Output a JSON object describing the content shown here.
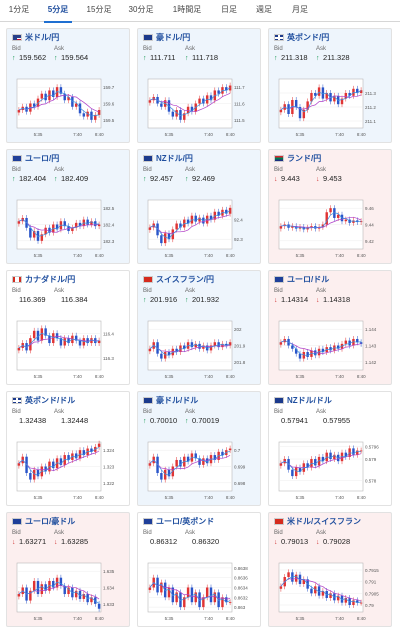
{
  "tabs": [
    {
      "label": "1分足",
      "active": false
    },
    {
      "label": "5分足",
      "active": true
    },
    {
      "label": "15分足",
      "active": false
    },
    {
      "label": "30分足",
      "active": false
    },
    {
      "label": "1時間足",
      "active": false
    },
    {
      "label": "日足",
      "active": false
    },
    {
      "label": "週足",
      "active": false
    },
    {
      "label": "月足",
      "active": false
    }
  ],
  "bid_label": "Bid",
  "ask_label": "Ask",
  "colors": {
    "up": "#1a9a55",
    "down": "#d23c3c",
    "candle_up": "#e03434",
    "candle_down": "#2a55c9",
    "ma_purple": "#b040c8",
    "ma_blue": "#3a8ee0"
  },
  "cards": [
    {
      "name": "米ドル/円",
      "flag": "us-flag",
      "trend": "up",
      "bid": "159.562",
      "ask": "159.564",
      "chart_data": {
        "type": "candlestick",
        "x_ticks": [
          "5:35",
          "7:40",
          "8:40"
        ],
        "y_ticks": [
          "159.7",
          "159.6",
          "159.5"
        ],
        "ylim": [
          159.45,
          159.75
        ],
        "close": [
          159.56,
          159.58,
          159.55,
          159.6,
          159.58,
          159.63,
          159.66,
          159.62,
          159.68,
          159.64,
          159.7,
          159.66,
          159.62,
          159.64,
          159.58,
          159.6,
          159.54,
          159.52,
          159.55,
          159.5,
          159.53,
          159.56
        ]
      }
    },
    {
      "name": "豪ドル/円",
      "flag": "au-flag",
      "trend": "up",
      "bid": "111.711",
      "ask": "111.718",
      "chart_data": {
        "type": "candlestick",
        "x_ticks": [
          "5:35",
          "7:40",
          "8:40"
        ],
        "y_ticks": [
          "111.7",
          "111.6",
          "111.5"
        ],
        "ylim": [
          111.45,
          111.75
        ],
        "close": [
          111.62,
          111.64,
          111.6,
          111.58,
          111.62,
          111.55,
          111.52,
          111.56,
          111.5,
          111.54,
          111.58,
          111.55,
          111.6,
          111.63,
          111.6,
          111.65,
          111.62,
          111.68,
          111.66,
          111.7,
          111.68,
          111.71
        ]
      }
    },
    {
      "name": "英ポンド/円",
      "flag": "gb-flag",
      "trend": "up",
      "bid": "211.318",
      "ask": "211.328",
      "chart_data": {
        "type": "candlestick",
        "x_ticks": [
          "5:35",
          "7:40",
          "8:40"
        ],
        "y_ticks": [
          "211.3",
          "211.2",
          "211.1"
        ],
        "ylim": [
          211.05,
          211.4
        ],
        "close": [
          211.18,
          211.22,
          211.15,
          211.25,
          211.2,
          211.12,
          211.18,
          211.24,
          211.3,
          211.28,
          211.34,
          211.26,
          211.3,
          211.24,
          211.28,
          211.22,
          211.26,
          211.3,
          211.28,
          211.33,
          211.3,
          211.32
        ]
      }
    },
    {
      "name": "ユーロ/円",
      "flag": "eu-flag",
      "trend": "up",
      "bid": "182.404",
      "ask": "182.409",
      "chart_data": {
        "type": "candlestick",
        "x_ticks": [
          "5:35",
          "7:40",
          "8:40"
        ],
        "y_ticks": [
          "182.5",
          "182.4",
          "182.3"
        ],
        "ylim": [
          182.25,
          182.55
        ],
        "close": [
          182.42,
          182.44,
          182.38,
          182.32,
          182.36,
          182.3,
          182.34,
          182.38,
          182.35,
          182.4,
          182.37,
          182.42,
          182.39,
          182.36,
          182.38,
          182.41,
          182.39,
          182.43,
          182.4,
          182.42,
          182.39,
          182.4
        ]
      }
    },
    {
      "name": "NZドル/円",
      "flag": "nz-flag",
      "trend": "up",
      "bid": "92.457",
      "ask": "92.469",
      "chart_data": {
        "type": "candlestick",
        "x_ticks": [
          "5:35",
          "7:40",
          "8:40"
        ],
        "y_ticks": [
          "92.4",
          "92.3"
        ],
        "ylim": [
          92.25,
          92.5
        ],
        "close": [
          92.36,
          92.38,
          92.32,
          92.28,
          92.33,
          92.3,
          92.35,
          92.38,
          92.36,
          92.4,
          92.38,
          92.42,
          92.39,
          92.41,
          92.38,
          92.42,
          92.4,
          92.44,
          92.42,
          92.45,
          92.43,
          92.46
        ]
      }
    },
    {
      "name": "ランド/円",
      "flag": "za-flag",
      "trend": "down",
      "bid": "9.443",
      "ask": "9.453",
      "chart_data": {
        "type": "candlestick",
        "x_ticks": [
          "5:35",
          "7:40",
          "8:40"
        ],
        "y_ticks": [
          "9.46",
          "9.44",
          "9.42"
        ],
        "ylim": [
          9.41,
          9.47
        ],
        "close": [
          9.438,
          9.44,
          9.436,
          9.438,
          9.435,
          9.437,
          9.434,
          9.436,
          9.438,
          9.435,
          9.437,
          9.44,
          9.455,
          9.46,
          9.448,
          9.452,
          9.444,
          9.446,
          9.442,
          9.445,
          9.443,
          9.444
        ]
      }
    },
    {
      "name": "カナダドル/円",
      "flag": "ca-flag",
      "trend": "flat",
      "bid": "116.369",
      "ask": "116.384",
      "chart_data": {
        "type": "candlestick",
        "x_ticks": [
          "5:35",
          "7:40",
          "8:40"
        ],
        "y_ticks": [
          "116.4",
          "116.3"
        ],
        "ylim": [
          116.25,
          116.45
        ],
        "close": [
          116.34,
          116.36,
          116.33,
          116.38,
          116.41,
          116.37,
          116.42,
          116.39,
          116.36,
          116.4,
          116.38,
          116.35,
          116.38,
          116.36,
          116.39,
          116.37,
          116.35,
          116.38,
          116.36,
          116.38,
          116.36,
          116.37
        ]
      }
    },
    {
      "name": "スイスフラン/円",
      "flag": "ch-flag",
      "trend": "up",
      "bid": "201.916",
      "ask": "201.932",
      "chart_data": {
        "type": "candlestick",
        "x_ticks": [
          "5:35",
          "7:40",
          "8:40"
        ],
        "y_ticks": [
          "202",
          "201.9",
          "201.8"
        ],
        "ylim": [
          201.75,
          202.05
        ],
        "close": [
          201.88,
          201.92,
          201.85,
          201.82,
          201.86,
          201.84,
          201.88,
          201.86,
          201.9,
          201.88,
          201.92,
          201.89,
          201.91,
          201.88,
          201.9,
          201.87,
          201.9,
          201.92,
          201.89,
          201.91,
          201.9,
          201.92
        ]
      }
    },
    {
      "name": "ユーロ/ドル",
      "flag": "eu-flag",
      "trend": "down",
      "bid": "1.14314",
      "ask": "1.14318",
      "chart_data": {
        "type": "candlestick",
        "x_ticks": [
          "5:35",
          "7:40",
          "8:40"
        ],
        "y_ticks": [
          "1.144",
          "1.143",
          "1.142"
        ],
        "ylim": [
          1.1415,
          1.1445
        ],
        "close": [
          1.1432,
          1.1434,
          1.143,
          1.1428,
          1.1425,
          1.1422,
          1.1426,
          1.1423,
          1.1427,
          1.1424,
          1.1428,
          1.1426,
          1.1429,
          1.1427,
          1.143,
          1.1428,
          1.1431,
          1.1433,
          1.143,
          1.1434,
          1.1432,
          1.1431
        ]
      }
    },
    {
      "name": "英ポンド/ドル",
      "flag": "gb-flag",
      "trend": "flat",
      "bid": "1.32438",
      "ask": "1.32448",
      "chart_data": {
        "type": "candlestick",
        "x_ticks": [
          "5:35",
          "7:40",
          "8:40"
        ],
        "y_ticks": [
          "1.324",
          "1.323",
          "1.322"
        ],
        "ylim": [
          1.3215,
          1.3245
        ],
        "close": [
          1.3232,
          1.3236,
          1.3226,
          1.3222,
          1.3228,
          1.3224,
          1.323,
          1.3227,
          1.3233,
          1.3229,
          1.3235,
          1.3231,
          1.3237,
          1.3234,
          1.3238,
          1.3235,
          1.324,
          1.3237,
          1.3241,
          1.3239,
          1.3242,
          1.3244
        ]
      }
    },
    {
      "name": "豪ドル/ドル",
      "flag": "au-flag",
      "trend": "up",
      "bid": "0.70010",
      "ask": "0.70019",
      "chart_data": {
        "type": "candlestick",
        "x_ticks": [
          "5:35",
          "7:40",
          "8:40"
        ],
        "y_ticks": [
          "0.7",
          "0.699",
          "0.698"
        ],
        "ylim": [
          0.6975,
          0.7005
        ],
        "close": [
          0.6992,
          0.6996,
          0.6986,
          0.6982,
          0.6988,
          0.6984,
          0.699,
          0.6994,
          0.699,
          0.6996,
          0.6993,
          0.6998,
          0.6995,
          0.6991,
          0.6995,
          0.6992,
          0.6997,
          0.6994,
          0.6999,
          0.6997,
          0.7,
          0.7001
        ]
      }
    },
    {
      "name": "NZドル/ドル",
      "flag": "nz-flag",
      "trend": "flat",
      "bid": "0.57941",
      "ask": "0.57955",
      "chart_data": {
        "type": "candlestick",
        "x_ticks": [
          "5:35",
          "7:40",
          "8:40"
        ],
        "y_ticks": [
          "0.5796",
          "0.579",
          "0.578"
        ],
        "ylim": [
          0.5775,
          0.5798
        ],
        "close": [
          0.5788,
          0.579,
          0.5785,
          0.5782,
          0.5786,
          0.5784,
          0.5788,
          0.5786,
          0.579,
          0.5787,
          0.5791,
          0.5789,
          0.5793,
          0.579,
          0.5792,
          0.5789,
          0.5793,
          0.5791,
          0.5795,
          0.5792,
          0.5794,
          0.5794
        ]
      }
    },
    {
      "name": "ユーロ/豪ドル",
      "flag": "eu-flag",
      "trend": "down",
      "bid": "1.63271",
      "ask": "1.63285",
      "chart_data": {
        "type": "candlestick",
        "x_ticks": [
          "5:35",
          "7:40",
          "8:40"
        ],
        "y_ticks": [
          "1.635",
          "1.634",
          "1.633"
        ],
        "ylim": [
          1.6325,
          1.6355
        ],
        "close": [
          1.6336,
          1.634,
          1.6332,
          1.6338,
          1.6344,
          1.6336,
          1.6342,
          1.6338,
          1.6344,
          1.634,
          1.6346,
          1.6341,
          1.6336,
          1.634,
          1.6334,
          1.6338,
          1.6333,
          1.6336,
          1.6331,
          1.6334,
          1.633,
          1.6327
        ]
      }
    },
    {
      "name": "ユーロ/英ポンド",
      "flag": "eu-flag",
      "trend": "flat",
      "bid": "0.86312",
      "ask": "0.86320",
      "chart_data": {
        "type": "candlestick",
        "x_ticks": [
          "5:35",
          "7:40",
          "8:40"
        ],
        "y_ticks": [
          "0.8638",
          "0.8636",
          "0.8634",
          "0.8632",
          "0.863"
        ],
        "ylim": [
          0.8629,
          0.8639
        ],
        "close": [
          0.8634,
          0.8636,
          0.8633,
          0.8635,
          0.8632,
          0.8634,
          0.8631,
          0.8633,
          0.863,
          0.8632,
          0.8634,
          0.8631,
          0.8633,
          0.863,
          0.8632,
          0.8634,
          0.8631,
          0.8633,
          0.863,
          0.8632,
          0.8631,
          0.8631
        ]
      }
    },
    {
      "name": "米ドル/スイスフラン",
      "flag": "us-ch-flag",
      "trend": "down",
      "bid": "0.79013",
      "ask": "0.79028",
      "chart_data": {
        "type": "candlestick",
        "x_ticks": [
          "5:35",
          "7:40",
          "8:40"
        ],
        "y_ticks": [
          "0.7915",
          "0.791",
          "0.7905",
          "0.79"
        ],
        "ylim": [
          0.7897,
          0.7918
        ],
        "close": [
          0.7908,
          0.7912,
          0.7914,
          0.791,
          0.7913,
          0.7909,
          0.7911,
          0.7907,
          0.7905,
          0.7908,
          0.7904,
          0.7906,
          0.7903,
          0.7905,
          0.7902,
          0.7904,
          0.7901,
          0.7903,
          0.79,
          0.7902,
          0.7901,
          0.7901
        ]
      }
    }
  ]
}
